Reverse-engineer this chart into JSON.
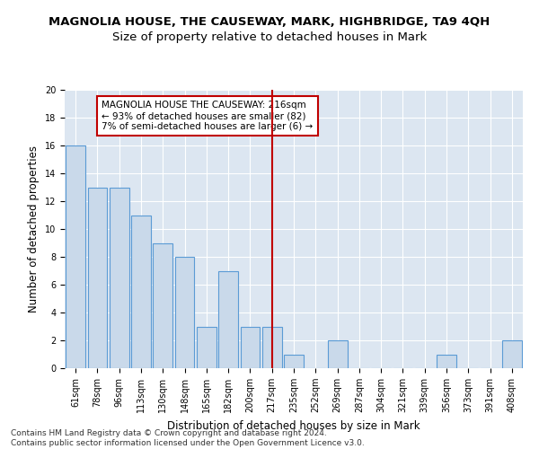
{
  "title": "MAGNOLIA HOUSE, THE CAUSEWAY, MARK, HIGHBRIDGE, TA9 4QH",
  "subtitle": "Size of property relative to detached houses in Mark",
  "xlabel": "Distribution of detached houses by size in Mark",
  "ylabel": "Number of detached properties",
  "bar_labels": [
    "61sqm",
    "78sqm",
    "96sqm",
    "113sqm",
    "130sqm",
    "148sqm",
    "165sqm",
    "182sqm",
    "200sqm",
    "217sqm",
    "235sqm",
    "252sqm",
    "269sqm",
    "287sqm",
    "304sqm",
    "321sqm",
    "339sqm",
    "356sqm",
    "373sqm",
    "391sqm",
    "408sqm"
  ],
  "bar_values": [
    16,
    13,
    13,
    11,
    9,
    8,
    3,
    7,
    3,
    3,
    1,
    0,
    2,
    0,
    0,
    0,
    0,
    1,
    0,
    0,
    2
  ],
  "bar_color": "#c9d9ea",
  "bar_edge_color": "#5b9bd5",
  "vline_x_index": 9,
  "vline_color": "#c00000",
  "annotation_text": "MAGNOLIA HOUSE THE CAUSEWAY: 216sqm\n← 93% of detached houses are smaller (82)\n7% of semi-detached houses are larger (6) →",
  "annotation_box_edge_color": "#c00000",
  "ylim": [
    0,
    20
  ],
  "yticks": [
    0,
    2,
    4,
    6,
    8,
    10,
    12,
    14,
    16,
    18,
    20
  ],
  "background_color": "#dce6f1",
  "plot_bg_color": "#dce6f1",
  "footer_text": "Contains HM Land Registry data © Crown copyright and database right 2024.\nContains public sector information licensed under the Open Government Licence v3.0.",
  "title_fontsize": 9.5,
  "subtitle_fontsize": 9.5,
  "label_fontsize": 8.5,
  "tick_fontsize": 7,
  "footer_fontsize": 6.5,
  "annotation_fontsize": 7.5
}
